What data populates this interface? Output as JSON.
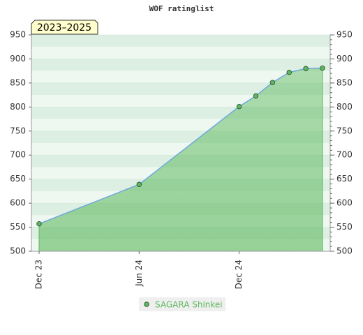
{
  "chart_data": {
    "type": "line",
    "title": "WOF ratinglist",
    "badge": "2023–2025",
    "x": [
      "2023-12",
      "2024-06",
      "2024-12",
      "2025-01",
      "2025-02",
      "2025-03",
      "2025-04",
      "2025-05"
    ],
    "series": [
      {
        "name": "SAGARA Shinkei",
        "color": "#5cb85c",
        "line_color": "#6fa8dc",
        "values": [
          557,
          639,
          801,
          823,
          851,
          872,
          880,
          881
        ]
      }
    ],
    "xlim": [
      "2023-12",
      "2025-05"
    ],
    "xticks": [
      {
        "value": "2023-12",
        "label": "Dec 23"
      },
      {
        "value": "2024-06",
        "label": "Jun 24"
      },
      {
        "value": "2024-12",
        "label": "Dec 24"
      }
    ],
    "ylim": [
      500,
      950
    ],
    "yticks": [
      500,
      550,
      600,
      650,
      700,
      750,
      800,
      850,
      900,
      950
    ],
    "grid": true
  }
}
